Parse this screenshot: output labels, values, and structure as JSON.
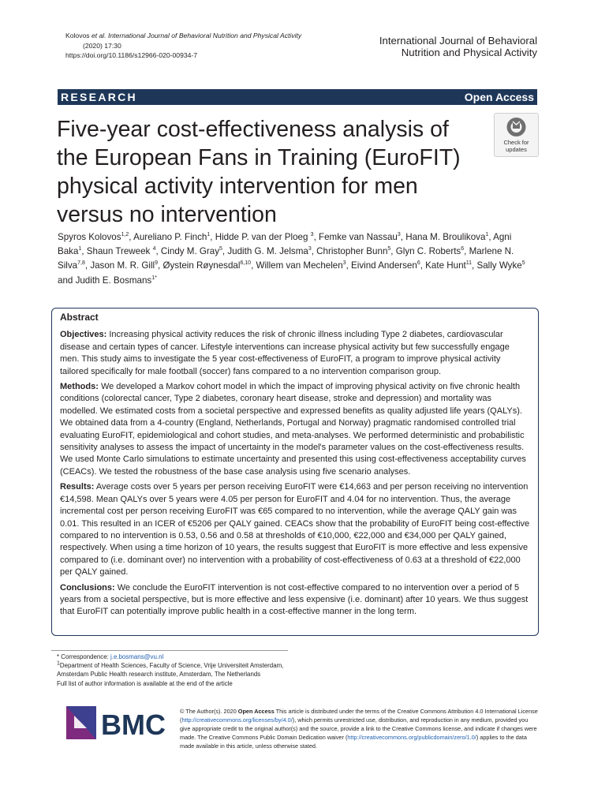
{
  "header": {
    "citation": {
      "author": "Kolovos",
      "etal": "et al.",
      "journal": "International Journal of Behavioral Nutrition and Physical Activity",
      "volume": "(2020) 17:30",
      "doi": "https://doi.org/10.1186/s12966-020-00934-7"
    },
    "journal": [
      "International Journal of Behavioral",
      "Nutrition and Physical Activity"
    ]
  },
  "banner": {
    "section": "RESEARCH",
    "access": "Open Access"
  },
  "title": "Five-year cost-effectiveness analysis of the European Fans in Training (EuroFIT) physical activity intervention for men versus no intervention",
  "badge": "Check for updates",
  "authors": [
    {
      "text": "Spyros Kolovos",
      "sup": "1,2"
    },
    {
      "text": ", Aureliano P. Finch",
      "sup": "1"
    },
    {
      "text": ", Hidde P. van der Ploeg ",
      "sup": "3"
    },
    {
      "text": ", Femke van Nassau",
      "sup": "3"
    },
    {
      "text": ", Hana M. Broulikova",
      "sup": "1"
    },
    {
      "text": ", Agni Baka",
      "sup": "1"
    },
    {
      "text": ", Shaun Treweek ",
      "sup": "4"
    },
    {
      "text": ", Cindy M. Gray",
      "sup": "5"
    },
    {
      "text": ", Judith G. M. Jelsma",
      "sup": "3"
    },
    {
      "text": ", Christopher Bunn",
      "sup": "5"
    },
    {
      "text": ", Glyn C. Roberts",
      "sup": "6"
    },
    {
      "text": ", Marlene N. Silva",
      "sup": "7,8"
    },
    {
      "text": ", Jason M. R. Gill",
      "sup": "9"
    },
    {
      "text": ", Øystein Røynesdal",
      "sup": "6,10"
    },
    {
      "text": ", Willem van Mechelen",
      "sup": "3"
    },
    {
      "text": ", Eivind Andersen",
      "sup": "6"
    },
    {
      "text": ", Kate Hunt",
      "sup": "11"
    },
    {
      "text": ", Sally Wyke",
      "sup": "5"
    },
    {
      "text": " and Judith E. Bosmans",
      "sup": "1*"
    }
  ],
  "abstract": {
    "heading": "Abstract",
    "sections": [
      {
        "label": "Objectives:",
        "text": "Increasing physical activity reduces the risk of chronic illness including Type 2 diabetes, cardiovascular disease and certain types of cancer. Lifestyle interventions can increase physical activity but few successfully engage men. This study aims to investigate the 5 year cost-effectiveness of EuroFIT, a program to improve physical activity tailored specifically for male football (soccer) fans compared to a no intervention comparison group."
      },
      {
        "label": "Methods:",
        "text": "We developed a Markov cohort model in which the impact of improving physical activity on five chronic health conditions (colorectal cancer, Type 2 diabetes, coronary heart disease, stroke and depression) and mortality was modelled. We estimated costs from a societal perspective and expressed benefits as quality adjusted life years (QALYs). We obtained data from a 4-country (England, Netherlands, Portugal and Norway) pragmatic randomised controlled trial evaluating EuroFIT, epidemiological and cohort studies, and meta-analyses. We performed deterministic and probabilistic sensitivity analyses to assess the impact of uncertainty in the model's parameter values on the cost-effectiveness results. We used Monte Carlo simulations to estimate uncertainty and presented this using cost-effectiveness acceptability curves (CEACs). We tested the robustness of the base case analysis using five scenario analyses."
      },
      {
        "label": "Results:",
        "text": "Average costs over 5 years per person receiving EuroFIT were €14,663 and per person receiving no intervention €14,598. Mean QALYs over 5 years were 4.05 per person for EuroFIT and 4.04 for no intervention. Thus, the average incremental cost per person receiving EuroFIT was €65 compared to no intervention, while the average QALY gain was 0.01. This resulted in an ICER of €5206 per QALY gained. CEACs show that the probability of EuroFIT being cost-effective compared to no intervention is 0.53, 0.56 and 0.58 at thresholds of €10,000, €22,000 and €34,000 per QALY gained, respectively. When using a time horizon of 10 years, the results suggest that EuroFIT is more effective and less expensive compared to (i.e. dominant over) no intervention with a probability of cost-effectiveness of 0.63 at a threshold of €22,000 per QALY gained."
      },
      {
        "label": "Conclusions:",
        "text": "We conclude the EuroFIT intervention is not cost-effective compared to no intervention over a period of 5 years from a societal perspective, but is more effective and less expensive (i.e. dominant) after 10 years. We thus suggest that EuroFIT can potentially improve public health in a cost-effective manner in the long term."
      }
    ]
  },
  "footnotes": {
    "correspondence": {
      "label": "* Correspondence:",
      "email": "j.e.bosmans@vu.nl"
    },
    "affiliation": {
      "sup": "1",
      "text": "Department of Health Sciences, Faculty of Science, Vrije Universiteit Amsterdam, Amsterdam Public Health research institute, Amsterdam, The Netherlands"
    },
    "more": "Full list of author information is available at the end of the article"
  },
  "logo": "BMC",
  "license": [
    "© The Author(s). 2020 ",
    "Open Access",
    " This article is distributed under the terms of the Creative Commons Attribution 4.0 International License (",
    "http://creativecommons.org/licenses/by/4.0/",
    "), which permits unrestricted use, distribution, and reproduction in any medium, provided you give appropriate credit to the original author(s) and the source, provide a link to the Creative Commons license, and indicate if changes were made. The Creative Commons Public Domain Dedication waiver (",
    "http://creativecommons.org/publicdomain/zero/1.0/",
    ") applies to the data made available in this article, unless otherwise stated."
  ]
}
